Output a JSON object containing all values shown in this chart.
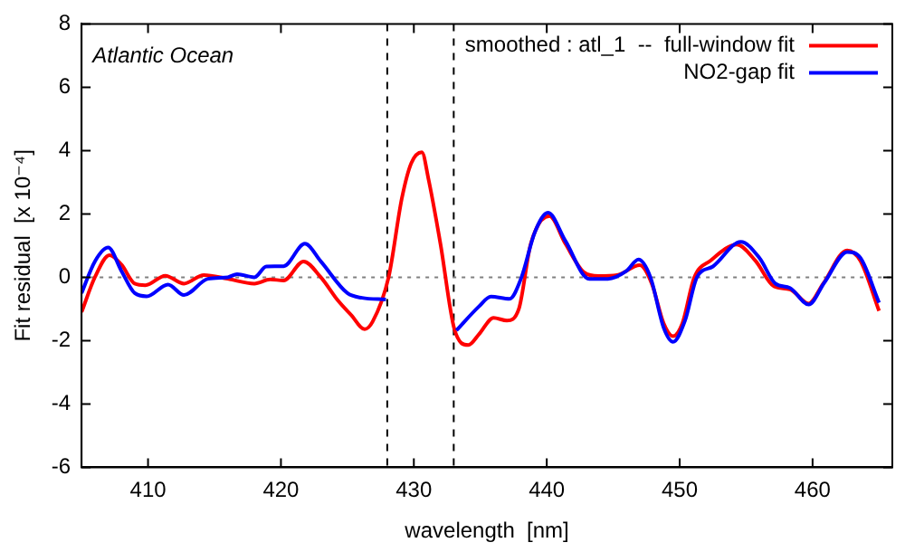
{
  "chart_data": {
    "type": "line",
    "xlabel": "wavelength  [nm]",
    "ylabel": "Fit residual  [x 10⁻⁴]",
    "annotations": [
      "Atlantic Ocean"
    ],
    "xlim": [
      405,
      466
    ],
    "xticks": [
      410,
      420,
      430,
      440,
      450,
      460
    ],
    "ylim": [
      -6,
      8
    ],
    "yticks": [
      -6,
      -4,
      -2,
      0,
      2,
      4,
      6,
      8
    ],
    "grid": false,
    "legend": "top right",
    "marker": "none",
    "line_style": "solid",
    "ref_lines": [
      {
        "axis": "x",
        "value": 428,
        "color": "#000000",
        "line_style": "dashed"
      },
      {
        "axis": "x",
        "value": 433,
        "color": "#000000",
        "line_style": "dashed"
      },
      {
        "axis": "y",
        "value": 0,
        "color": "#808080",
        "line_style": "dotted"
      }
    ],
    "series": [
      {
        "name": "smoothed : atl_1  --  full-window fit",
        "color": "#ff0000",
        "x": [
          405,
          406,
          407.1,
          408,
          409,
          409.8,
          411.3,
          412.7,
          414.2,
          416,
          418,
          419.2,
          420.2,
          421.7,
          423,
          424.3,
          425.3,
          426.3,
          426.9,
          428.1,
          429.1,
          429.8,
          430.6,
          431.1,
          432,
          433.05,
          434.1,
          434.9,
          436,
          437,
          437.9,
          438.8,
          440.2,
          441.4,
          442.8,
          443.9,
          445.3,
          447,
          447.9,
          448.8,
          449.5,
          450.2,
          451.1,
          452.3,
          454.3,
          455.7,
          457.1,
          458.3,
          459.7,
          460.8,
          462.6,
          463.6,
          465
        ],
        "values": [
          -1.1,
          0,
          0.7,
          0.4,
          -0.2,
          -0.25,
          0.05,
          -0.2,
          0.07,
          -0.05,
          -0.2,
          -0.07,
          -0.1,
          0.5,
          0,
          -0.74,
          -1.2,
          -1.64,
          -1.4,
          0,
          2.5,
          3.6,
          3.95,
          3.1,
          1.06,
          -1.64,
          -2.14,
          -1.8,
          -1.28,
          -1.37,
          -1,
          1.06,
          1.93,
          1.06,
          0.16,
          0.04,
          0.07,
          0.38,
          -0.2,
          -1.46,
          -1.86,
          -1.46,
          0,
          0.52,
          1.03,
          0.52,
          -0.29,
          -0.38,
          -0.83,
          -0.2,
          0.85,
          0.52,
          -1.06
        ]
      },
      {
        "name": "NO2-gap fit",
        "color": "#0000ff",
        "x": [
          405,
          406,
          407,
          408,
          409,
          409.9,
          411.5,
          412.7,
          414.5,
          416,
          416.7,
          418,
          418.9,
          420.2,
          421.8,
          423,
          425,
          426.1,
          427.9,
          430.5,
          433.2,
          434.9,
          435.8,
          437.2,
          438.1,
          439.1,
          440.1,
          441.4,
          443.2,
          444.6,
          446,
          446.9,
          447.8,
          448.8,
          449.5,
          450.4,
          451.3,
          452.5,
          454.6,
          456,
          457.2,
          458.3,
          459.7,
          460.9,
          462.6,
          463.6,
          465
        ],
        "values": [
          -0.5,
          0.5,
          0.94,
          0.2,
          -0.5,
          -0.6,
          -0.23,
          -0.56,
          -0.05,
          0,
          0.1,
          0,
          0.34,
          0.35,
          1.06,
          0.5,
          -0.5,
          -0.65,
          -0.7,
          null,
          -1.68,
          -0.92,
          -0.61,
          -0.68,
          0,
          1.42,
          2.04,
          1.15,
          -0.05,
          -0.05,
          0.2,
          0.56,
          0,
          -1.6,
          -2.04,
          -1.37,
          0,
          0.34,
          1.12,
          0.61,
          -0.2,
          -0.34,
          -0.86,
          -0.16,
          0.8,
          0.61,
          -0.8
        ]
      }
    ]
  }
}
